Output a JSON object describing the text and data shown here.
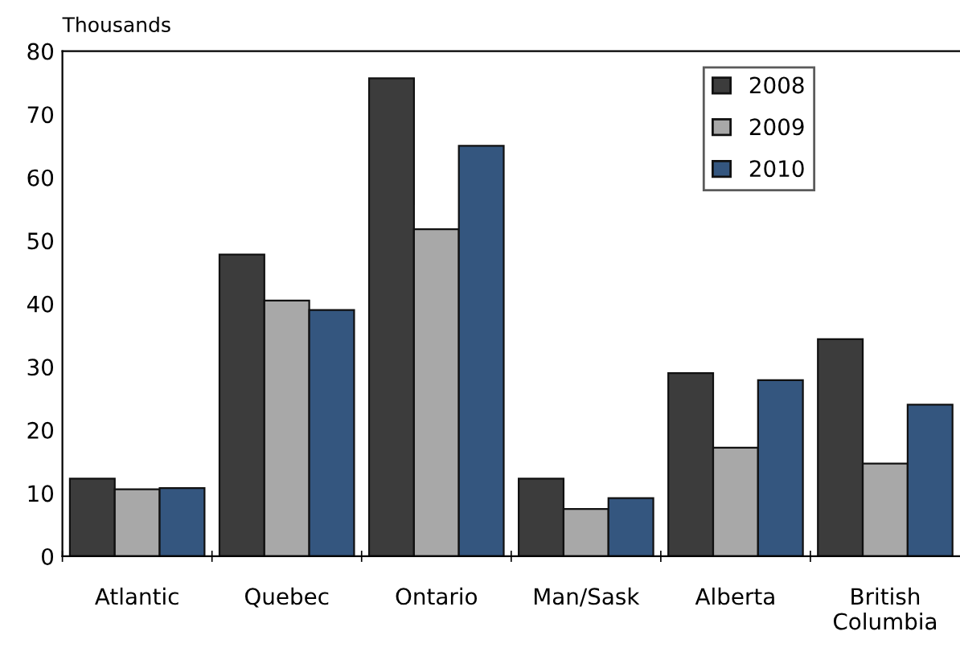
{
  "chart_data": {
    "type": "bar",
    "ylabel": "Thousands",
    "categories": [
      "Atlantic",
      "Quebec",
      "Ontario",
      "Man/Sask",
      "Alberta",
      "British\nColumbia"
    ],
    "series": [
      {
        "name": "2008",
        "color": "#3c3c3c",
        "values": [
          12.3,
          47.8,
          75.7,
          12.3,
          29,
          34.4
        ]
      },
      {
        "name": "2009",
        "color": "#a8a8a8",
        "values": [
          10.6,
          40.5,
          51.8,
          7.5,
          17.2,
          14.7
        ]
      },
      {
        "name": "2010",
        "color": "#34567f",
        "values": [
          10.8,
          39,
          65,
          9.2,
          27.9,
          24
        ]
      }
    ],
    "ylim": [
      0,
      80
    ],
    "yticks": [
      0,
      10,
      20,
      30,
      40,
      50,
      60,
      70,
      80
    ],
    "grid": false,
    "legend": "top right"
  }
}
